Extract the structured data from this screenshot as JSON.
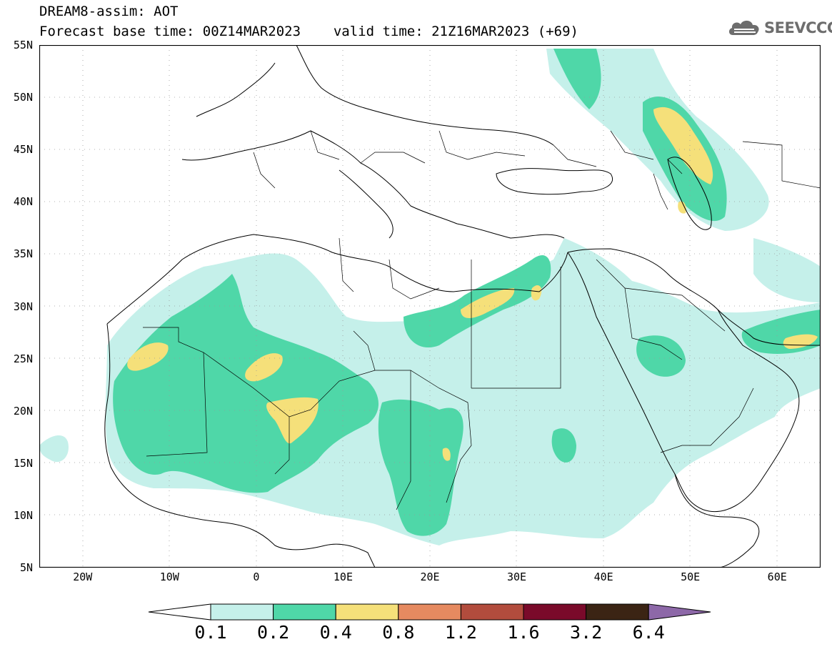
{
  "title": {
    "line1": "DREAM8-assim: AOT",
    "base_label": "Forecast base time: 00Z14MAR2023",
    "valid_label": "valid time: 21Z16MAR2023 (+69)"
  },
  "logo": {
    "text": "SEEVCCC",
    "icon": "cloud-icon"
  },
  "map": {
    "projection": "equirectangular",
    "lon_range": [
      -25,
      65
    ],
    "lat_range": [
      5,
      55
    ],
    "lat_labels": [
      "55N",
      "50N",
      "45N",
      "40N",
      "35N",
      "30N",
      "25N",
      "20N",
      "15N",
      "10N",
      "5N"
    ],
    "lon_labels": [
      "20W",
      "10W",
      "0",
      "10E",
      "20E",
      "30E",
      "40E",
      "50E",
      "60E"
    ],
    "grid": "dotted"
  },
  "colorbar": {
    "labels": [
      "0.1",
      "0.2",
      "0.4",
      "0.8",
      "1.2",
      "1.6",
      "3.2",
      "6.4"
    ],
    "colors": [
      "#c5f0ea",
      "#4fd7a8",
      "#f5e07a",
      "#e68a60",
      "#b24c3d",
      "#7a0a2a",
      "#3b2414",
      "#8d68a8"
    ],
    "low_end_color": "#ffffff"
  }
}
